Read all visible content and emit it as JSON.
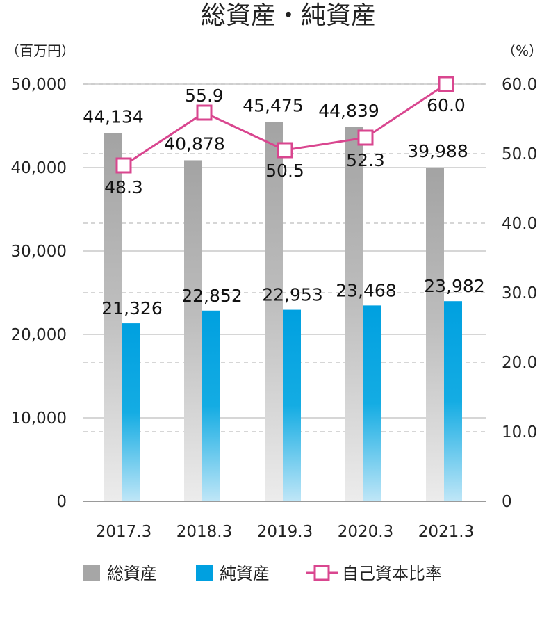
{
  "chart_data": {
    "type": "bar+line",
    "title": "総資産・純資産",
    "left_axis": {
      "unit": "（百万円）",
      "ylim": [
        0,
        50000
      ],
      "ticks": [
        "0",
        "10,000",
        "20,000",
        "30,000",
        "40,000",
        "50,000"
      ]
    },
    "right_axis": {
      "unit": "（%）",
      "ylim": [
        0,
        60
      ],
      "ticks": [
        "0",
        "10.0",
        "20.0",
        "30.0",
        "40.0",
        "50.0",
        "60.0"
      ]
    },
    "categories": [
      "2017.3",
      "2018.3",
      "2019.3",
      "2020.3",
      "2021.3"
    ],
    "series": [
      {
        "name": "総資産",
        "type": "bar",
        "axis": "left",
        "color": "#a6a6a6",
        "values": [
          44134,
          40878,
          45475,
          44839,
          39988
        ],
        "labels": [
          "44,134",
          "40,878",
          "45,475",
          "44,839",
          "39,988"
        ]
      },
      {
        "name": "純資産",
        "type": "bar",
        "axis": "left",
        "color": "#00a0e0",
        "values": [
          21326,
          22852,
          22953,
          23468,
          23982
        ],
        "labels": [
          "21,326",
          "22,852",
          "22,953",
          "23,468",
          "23,982"
        ]
      },
      {
        "name": "自己資本比率",
        "type": "line",
        "axis": "right",
        "color": "#d9468f",
        "values": [
          48.3,
          55.9,
          50.5,
          52.3,
          60.0
        ],
        "labels": [
          "48.3",
          "55.9",
          "50.5",
          "52.3",
          "60.0"
        ]
      }
    ],
    "grid": true,
    "legend_position": "bottom"
  }
}
